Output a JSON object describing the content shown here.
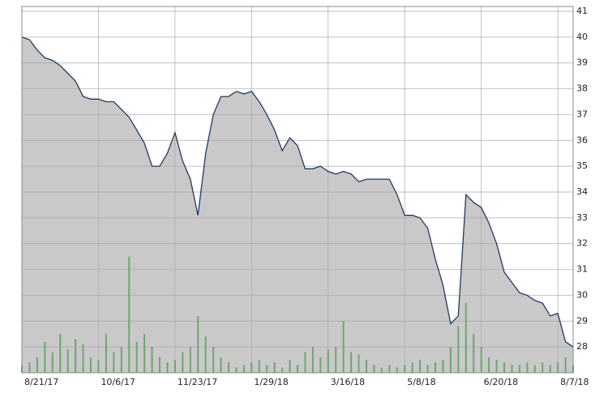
{
  "chart_data": {
    "type": "area",
    "x": [
      0,
      1,
      2,
      3,
      4,
      5,
      6,
      7,
      8,
      9,
      10,
      11,
      12,
      13,
      14,
      15,
      16,
      17,
      18,
      19,
      20,
      21,
      22,
      23,
      24,
      25,
      26,
      27,
      28,
      29,
      30,
      31,
      32,
      33,
      34,
      35,
      36,
      37,
      38,
      39,
      40,
      41,
      42,
      43,
      44,
      45,
      46,
      47,
      48,
      49,
      50,
      51,
      52,
      53,
      54,
      55,
      56,
      57,
      58,
      59,
      60,
      61,
      62,
      63,
      64,
      65,
      66,
      67,
      68,
      69,
      70,
      71,
      72
    ],
    "series": [
      {
        "color": "#1f3a60",
        "fill": "#c9c9c9",
        "values": [
          40.0,
          39.9,
          39.5,
          39.2,
          39.1,
          38.9,
          38.6,
          38.3,
          37.7,
          37.6,
          37.6,
          37.5,
          37.5,
          37.2,
          36.9,
          36.4,
          35.9,
          35.0,
          35.0,
          35.5,
          36.3,
          35.2,
          34.5,
          33.1,
          35.5,
          37.0,
          37.7,
          37.7,
          37.9,
          37.8,
          37.9,
          37.5,
          37.0,
          36.4,
          35.6,
          36.1,
          35.8,
          34.9,
          34.9,
          35.0,
          34.8,
          34.7,
          34.8,
          34.7,
          34.4,
          34.5,
          34.5,
          34.5,
          34.5,
          33.9,
          33.1,
          33.1,
          33.0,
          32.6,
          31.4,
          30.4,
          28.9,
          29.2,
          33.9,
          33.6,
          33.4,
          32.8,
          32.0,
          30.9,
          30.5,
          30.1,
          30.0,
          29.8,
          29.7,
          29.2,
          29.3,
          28.2,
          28.0
        ]
      },
      {
        "type": "bar",
        "color": "#6fa56f",
        "values": [
          27.3,
          27.4,
          27.6,
          28.2,
          27.8,
          28.5,
          27.9,
          28.3,
          28.1,
          27.6,
          27.5,
          28.5,
          27.8,
          28.0,
          31.5,
          28.2,
          28.5,
          28.0,
          27.6,
          27.4,
          27.5,
          27.8,
          28.0,
          29.2,
          28.4,
          28.0,
          27.6,
          27.4,
          27.2,
          27.3,
          27.4,
          27.5,
          27.3,
          27.4,
          27.2,
          27.5,
          27.3,
          27.8,
          28.0,
          27.6,
          27.9,
          28.0,
          29.0,
          27.8,
          27.7,
          27.5,
          27.3,
          27.2,
          27.3,
          27.2,
          27.3,
          27.4,
          27.5,
          27.3,
          27.4,
          27.5,
          28.0,
          28.8,
          29.7,
          28.5,
          28.0,
          27.6,
          27.5,
          27.4,
          27.3,
          27.3,
          27.4,
          27.3,
          27.4,
          27.3,
          27.4,
          27.6,
          27.3
        ]
      }
    ],
    "xlim": [
      0,
      72
    ],
    "xticks": [
      {
        "value": 0,
        "label": "8/21/17"
      },
      {
        "value": 10,
        "label": "10/6/17"
      },
      {
        "value": 20,
        "label": "11/23/17"
      },
      {
        "value": 30,
        "label": "1/29/18"
      },
      {
        "value": 40,
        "label": "3/16/18"
      },
      {
        "value": 50,
        "label": "5/8/18"
      },
      {
        "value": 60,
        "label": "6/20/18"
      },
      {
        "value": 70,
        "label": "8/7/18"
      }
    ],
    "ylim": [
      27,
      41
    ],
    "yticks": [
      28,
      29,
      30,
      31,
      32,
      33,
      34,
      35,
      36,
      37,
      38,
      39,
      40,
      41
    ],
    "grid": true
  }
}
